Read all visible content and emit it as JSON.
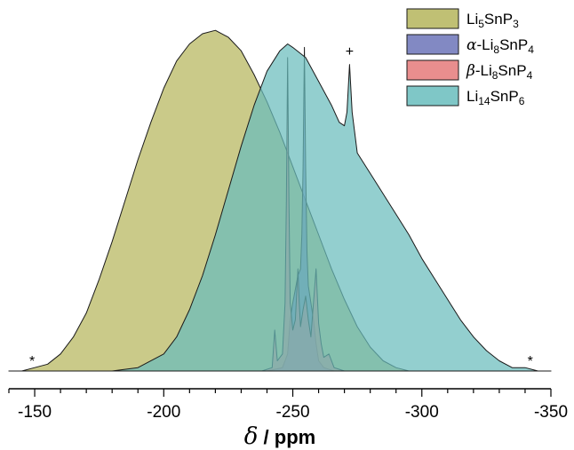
{
  "chart_data": {
    "type": "area",
    "title": "",
    "xlabel": "δ / ppm",
    "xlabel_parts": [
      "δ",
      " / ppm"
    ],
    "ylabel": "",
    "xlim": [
      -140,
      -350
    ],
    "x_inverted": true,
    "ylim": [
      0,
      1.05
    ],
    "x_ticks": [
      -150,
      -200,
      -250,
      -300,
      -350
    ],
    "x_tick_labels": [
      "-150",
      "-200",
      "-250",
      "-300",
      "-350"
    ],
    "grid": false,
    "legend_position": "top-right",
    "series": [
      {
        "name": "Li5SnP3",
        "label_parts": [
          [
            "Li",
            ""
          ],
          [
            "5",
            "sub"
          ],
          [
            "SnP",
            ""
          ],
          [
            "3",
            "sub"
          ]
        ],
        "color": "#b5b55c",
        "points": [
          [
            -140,
            0
          ],
          [
            -145,
            0
          ],
          [
            -150,
            0.01
          ],
          [
            -155,
            0.02
          ],
          [
            -160,
            0.05
          ],
          [
            -165,
            0.1
          ],
          [
            -170,
            0.17
          ],
          [
            -175,
            0.27
          ],
          [
            -180,
            0.38
          ],
          [
            -185,
            0.5
          ],
          [
            -190,
            0.62
          ],
          [
            -195,
            0.73
          ],
          [
            -200,
            0.83
          ],
          [
            -205,
            0.91
          ],
          [
            -210,
            0.96
          ],
          [
            -215,
            0.99
          ],
          [
            -220,
            1.0
          ],
          [
            -225,
            0.98
          ],
          [
            -230,
            0.94
          ],
          [
            -235,
            0.87
          ],
          [
            -240,
            0.79
          ],
          [
            -245,
            0.7
          ],
          [
            -250,
            0.6
          ],
          [
            -255,
            0.5
          ],
          [
            -260,
            0.4
          ],
          [
            -265,
            0.3
          ],
          [
            -270,
            0.21
          ],
          [
            -275,
            0.13
          ],
          [
            -280,
            0.07
          ],
          [
            -285,
            0.03
          ],
          [
            -290,
            0.01
          ],
          [
            -295,
            0
          ],
          [
            -350,
            0
          ]
        ]
      },
      {
        "name": "α-Li8SnP4",
        "label_parts": [
          [
            "α",
            "ital"
          ],
          [
            "-Li",
            ""
          ],
          [
            "8",
            "sub"
          ],
          [
            "SnP",
            ""
          ],
          [
            "4",
            "sub"
          ]
        ],
        "color": "#6c74b8",
        "points": [
          [
            -240,
            0
          ],
          [
            -246,
            0.01
          ],
          [
            -248,
            0.05
          ],
          [
            -249,
            0.15
          ],
          [
            -250,
            0.2
          ],
          [
            -251,
            0.24
          ],
          [
            -252,
            0.28
          ],
          [
            -253,
            0.3
          ],
          [
            -253.5,
            0.4
          ],
          [
            -254,
            0.6
          ],
          [
            -254.5,
            0.95
          ],
          [
            -255,
            0.6
          ],
          [
            -255.5,
            0.35
          ],
          [
            -256,
            0.25
          ],
          [
            -257,
            0.2
          ],
          [
            -258,
            0.15
          ],
          [
            -259,
            0.08
          ],
          [
            -260,
            0.03
          ],
          [
            -262,
            0.01
          ],
          [
            -266,
            0
          ]
        ]
      },
      {
        "name": "β-Li8SnP4",
        "label_parts": [
          [
            "β",
            "ital"
          ],
          [
            "-Li",
            ""
          ],
          [
            "8",
            "sub"
          ],
          [
            "SnP",
            ""
          ],
          [
            "4",
            "sub"
          ]
        ],
        "color": "#e57a7a",
        "points": [
          [
            -238,
            0
          ],
          [
            -242,
            0.01
          ],
          [
            -243,
            0.12
          ],
          [
            -244,
            0.03
          ],
          [
            -246,
            0.05
          ],
          [
            -247,
            0.2
          ],
          [
            -247.5,
            0.5
          ],
          [
            -248,
            0.92
          ],
          [
            -248.5,
            0.5
          ],
          [
            -249,
            0.2
          ],
          [
            -250,
            0.12
          ],
          [
            -251,
            0.15
          ],
          [
            -252,
            0.3
          ],
          [
            -252.5,
            0.2
          ],
          [
            -253,
            0.13
          ],
          [
            -254,
            0.18
          ],
          [
            -255,
            0.22
          ],
          [
            -256,
            0.15
          ],
          [
            -257,
            0.1
          ],
          [
            -258,
            0.2
          ],
          [
            -259,
            0.3
          ],
          [
            -260,
            0.14
          ],
          [
            -261,
            0.08
          ],
          [
            -262,
            0.04
          ],
          [
            -264,
            0.05
          ],
          [
            -266,
            0.01
          ],
          [
            -270,
            0
          ]
        ]
      },
      {
        "name": "Li14SnP6",
        "label_parts": [
          [
            "Li",
            ""
          ],
          [
            "14",
            "sub"
          ],
          [
            "SnP",
            ""
          ],
          [
            "6",
            "sub"
          ]
        ],
        "color": "#69bdbd",
        "points": [
          [
            -140,
            0
          ],
          [
            -180,
            0
          ],
          [
            -190,
            0.01
          ],
          [
            -200,
            0.05
          ],
          [
            -205,
            0.1
          ],
          [
            -210,
            0.18
          ],
          [
            -215,
            0.28
          ],
          [
            -220,
            0.4
          ],
          [
            -225,
            0.53
          ],
          [
            -230,
            0.66
          ],
          [
            -235,
            0.78
          ],
          [
            -240,
            0.88
          ],
          [
            -245,
            0.94
          ],
          [
            -248,
            0.96
          ],
          [
            -250,
            0.95
          ],
          [
            -255,
            0.92
          ],
          [
            -260,
            0.85
          ],
          [
            -265,
            0.78
          ],
          [
            -268,
            0.73
          ],
          [
            -270,
            0.72
          ],
          [
            -271,
            0.76
          ],
          [
            -272,
            0.9
          ],
          [
            -273,
            0.76
          ],
          [
            -275,
            0.64
          ],
          [
            -280,
            0.58
          ],
          [
            -285,
            0.52
          ],
          [
            -290,
            0.46
          ],
          [
            -295,
            0.4
          ],
          [
            -300,
            0.33
          ],
          [
            -305,
            0.27
          ],
          [
            -310,
            0.21
          ],
          [
            -315,
            0.15
          ],
          [
            -320,
            0.1
          ],
          [
            -325,
            0.06
          ],
          [
            -330,
            0.03
          ],
          [
            -335,
            0.01
          ],
          [
            -340,
            0.01
          ],
          [
            -345,
            0
          ],
          [
            -350,
            0
          ]
        ]
      }
    ],
    "annotations": [
      {
        "text": "*",
        "x": -149,
        "y": 0.01
      },
      {
        "text": "+",
        "x": -272,
        "y": 0.92
      },
      {
        "text": "*",
        "x": -342,
        "y": 0.01
      }
    ]
  }
}
